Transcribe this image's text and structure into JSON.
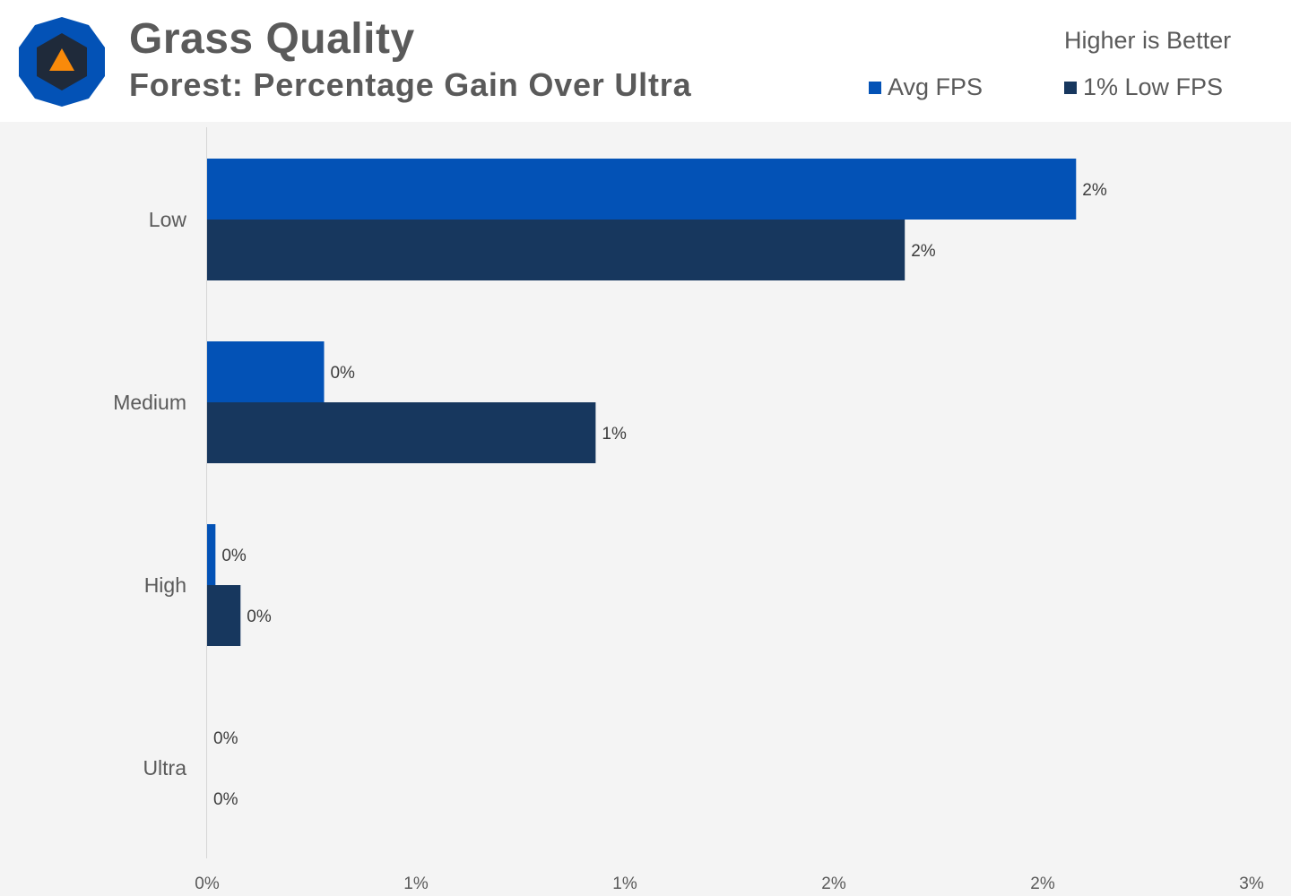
{
  "header": {
    "title": "Grass Quality",
    "subtitle": "Forest: Percentage Gain Over Ultra",
    "note": "Higher is Better",
    "legend": [
      {
        "label": "Avg FPS",
        "color": "#0352b6"
      },
      {
        "label": "1% Low FPS",
        "color": "#17375e"
      }
    ]
  },
  "colors": {
    "background": "#f4f4f4",
    "header_background": "#ffffff",
    "logo_outer": "#0352b6",
    "logo_inner": "#1f2a3a",
    "logo_triangle": "#f98a0a"
  },
  "chart_data": {
    "type": "bar",
    "orientation": "horizontal",
    "categories": [
      "Low",
      "Medium",
      "High",
      "Ultra"
    ],
    "series": [
      {
        "name": "Avg FPS",
        "color": "#0352b6",
        "values": [
          2.08,
          0.28,
          0.02,
          0
        ],
        "labels": [
          "2%",
          "0%",
          "0%",
          "0%"
        ]
      },
      {
        "name": "1% Low FPS",
        "color": "#17375e",
        "values": [
          1.67,
          0.93,
          0.08,
          0
        ],
        "labels": [
          "2%",
          "1%",
          "0%",
          "0%"
        ]
      }
    ],
    "xlim": [
      0,
      2.5
    ],
    "xticks": [
      0,
      0.5,
      1,
      1.5,
      2,
      2.5
    ],
    "xtick_labels": [
      "0%",
      "1%",
      "1%",
      "2%",
      "2%",
      "3%"
    ],
    "grid": false,
    "legend_position": "top-right"
  }
}
